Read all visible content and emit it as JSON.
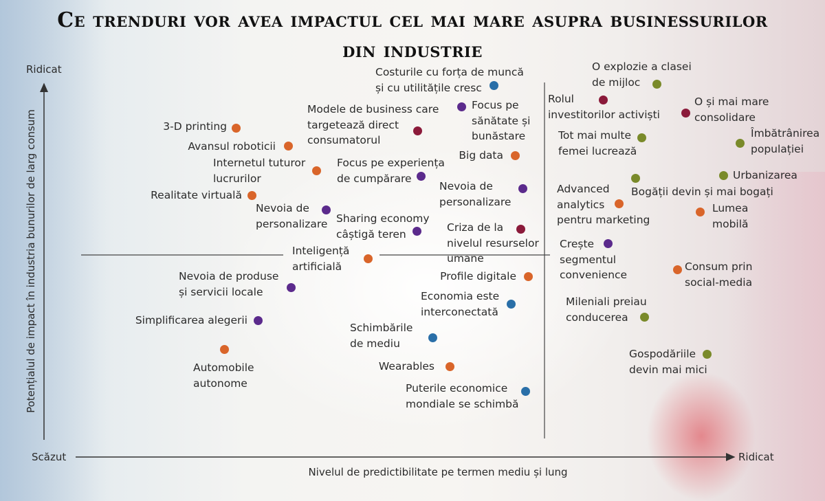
{
  "title": {
    "lines": [
      "Ce trenduri vor avea impactul cel mai mare asupra businessurilor",
      "din industrie"
    ]
  },
  "y_axis": {
    "label": "Potențialul de impact în industria bunurilor de larg consum",
    "high": "Ridicat",
    "low": "Scăzut"
  },
  "x_axis": {
    "label": "Nivelul de predictibilitate pe termen mediu și lung",
    "high": "Ridicat"
  },
  "items": [
    {
      "lines": [
        "Costurile cu forța de muncă",
        "și cu utilitățile cresc"
      ],
      "color": "#2a6fa8"
    },
    {
      "lines": [
        "O explozie a clasei",
        "de mijloc"
      ],
      "color": "#7a8a2a"
    },
    {
      "lines": [
        "Rolul",
        "investitorilor activiști"
      ],
      "color": "#8b1a3a"
    },
    {
      "lines": [
        "O și mai mare",
        "consolidare"
      ],
      "color": "#8b1a3a"
    },
    {
      "lines": [
        "Modele de business care",
        "targetează direct",
        "consumatorul"
      ],
      "color": "#8b1a3a"
    },
    {
      "lines": [
        "Focus pe",
        "sănătate și",
        "bunăstare"
      ],
      "color": "#5b2a8c"
    },
    {
      "lines": [
        "3-D printing"
      ],
      "color": "#d9652a"
    },
    {
      "lines": [
        "Avansul roboticii"
      ],
      "color": "#d9652a"
    },
    {
      "lines": [
        "Tot mai multe",
        "femei lucrează"
      ],
      "color": "#7a8a2a"
    },
    {
      "lines": [
        "Îmbătrânirea",
        "populației"
      ],
      "color": "#7a8a2a"
    },
    {
      "lines": [
        "Big data"
      ],
      "color": "#d9652a"
    },
    {
      "lines": [
        "Internetul tuturor",
        "lucrurilor"
      ],
      "color": "#d9652a"
    },
    {
      "lines": [
        "Focus pe experiența",
        "de cumpărare"
      ],
      "color": "#5b2a8c"
    },
    {
      "lines": [
        "Urbanizarea"
      ],
      "color": "#7a8a2a"
    },
    {
      "lines": [
        "Bogății devin și mai bogați"
      ],
      "color": "#7a8a2a"
    },
    {
      "lines": [
        "Nevoia de",
        "personalizare"
      ],
      "color": "#5b2a8c"
    },
    {
      "lines": [
        "Realitate virtuală"
      ],
      "color": "#d9652a"
    },
    {
      "lines": [
        "Advanced",
        "analytics",
        "pentru marketing"
      ],
      "color": "#d9652a"
    },
    {
      "lines": [
        "Lumea",
        "mobilă"
      ],
      "color": "#d9652a"
    },
    {
      "lines": [
        "Nevoia de",
        "personalizare"
      ],
      "color": "#5b2a8c"
    },
    {
      "lines": [
        "Sharing economy",
        "câștigă teren"
      ],
      "color": "#5b2a8c"
    },
    {
      "lines": [
        "Criza de la",
        "nivelul resurselor",
        "umane"
      ],
      "color": "#8b1a3a"
    },
    {
      "lines": [
        "Crește",
        "segmentul",
        "convenience"
      ],
      "color": "#5b2a8c"
    },
    {
      "lines": [
        "Inteligență",
        "artificială"
      ],
      "color": "#d9652a"
    },
    {
      "lines": [
        "Consum prin",
        "social-media"
      ],
      "color": "#d9652a"
    },
    {
      "lines": [
        "Nevoia de produse",
        "și servicii locale"
      ],
      "color": "#5b2a8c"
    },
    {
      "lines": [
        "Profile digitale"
      ],
      "color": "#d9652a"
    },
    {
      "lines": [
        "Economia este",
        "interconectată"
      ],
      "color": "#2a6fa8"
    },
    {
      "lines": [
        "Mileniali preiau",
        "conducerea"
      ],
      "color": "#7a8a2a"
    },
    {
      "lines": [
        "Simplificarea alegerii"
      ],
      "color": "#5b2a8c"
    },
    {
      "lines": [
        "Schimbările",
        "de mediu"
      ],
      "color": "#2a6fa8"
    },
    {
      "lines": [
        "Automobile",
        "autonome"
      ],
      "color": "#d9652a"
    },
    {
      "lines": [
        "Gospodăriile",
        "devin mai mici"
      ],
      "color": "#7a8a2a"
    },
    {
      "lines": [
        "Wearables"
      ],
      "color": "#d9652a"
    },
    {
      "lines": [
        "Puterile economice",
        "mondiale se schimbă"
      ],
      "color": "#2a6fa8"
    }
  ]
}
